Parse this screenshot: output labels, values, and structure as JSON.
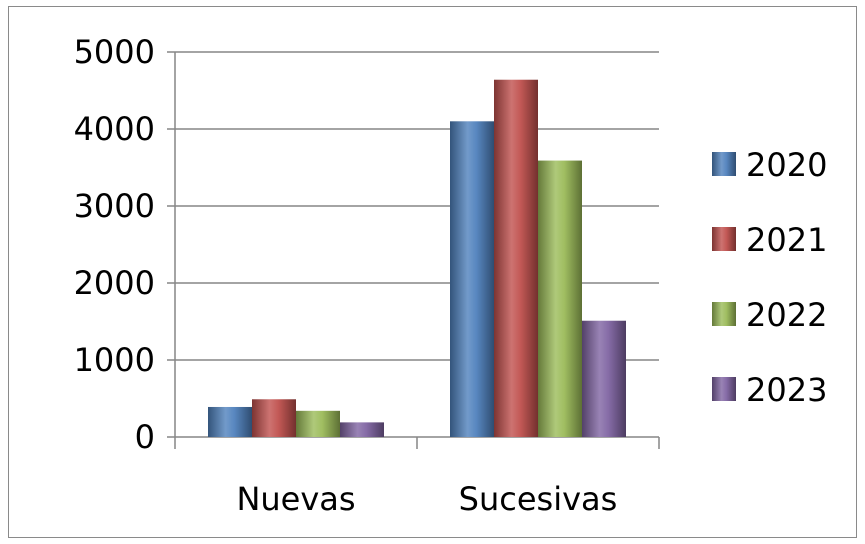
{
  "chart_data": {
    "type": "bar",
    "categories": [
      "Nuevas",
      "Sucesivas"
    ],
    "series": [
      {
        "name": "2020",
        "values": [
          390,
          4100
        ],
        "color": "#4F81BD"
      },
      {
        "name": "2021",
        "values": [
          490,
          4640
        ],
        "color": "#C0504D"
      },
      {
        "name": "2022",
        "values": [
          340,
          3590
        ],
        "color": "#9BBB59"
      },
      {
        "name": "2023",
        "values": [
          190,
          1510
        ],
        "color": "#8064A2"
      }
    ],
    "yticks": [
      "0",
      "1000",
      "2000",
      "3000",
      "4000",
      "5000"
    ],
    "ylim": [
      0,
      5000
    ],
    "grid": true,
    "legend_position": "right"
  }
}
